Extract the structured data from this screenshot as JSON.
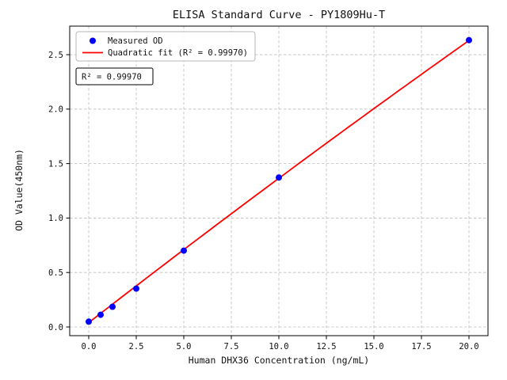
{
  "chart_data": {
    "type": "scatter",
    "title": "ELISA Standard Curve - PY1809Hu-T",
    "xlabel": "Human DHX36 Concentration (ng/mL)",
    "ylabel": "OD Value(450nm)",
    "xlim": [
      -1,
      21
    ],
    "ylim": [
      -0.08,
      2.762
    ],
    "grid": true,
    "xticks": {
      "values": [
        0,
        2.5,
        5,
        7.5,
        10,
        12.5,
        15,
        17.5,
        20
      ],
      "labels": [
        "0.0",
        "2.5",
        "5.0",
        "7.5",
        "10.0",
        "12.5",
        "15.0",
        "17.5",
        "20.0"
      ]
    },
    "yticks": {
      "values": [
        0,
        0.5,
        1,
        1.5,
        2,
        2.5
      ],
      "labels": [
        "0.0",
        "0.5",
        "1.0",
        "1.5",
        "2.0",
        "2.5"
      ]
    },
    "colors": {
      "marker": "#0000ff",
      "fit_line": "#ff0000",
      "grid": "#bdbdbd",
      "axes": "#000000"
    },
    "series": [
      {
        "name": "Measured OD",
        "type": "scatter",
        "color": "#0000ff",
        "x": [
          0,
          0.625,
          1.25,
          2.5,
          5,
          10,
          20
        ],
        "y": [
          0.049,
          0.112,
          0.185,
          0.352,
          0.701,
          1.372,
          2.633
        ]
      },
      {
        "name": "Quadratic fit",
        "type": "line",
        "color": "#ff0000",
        "fit": {
          "kind": "quadratic",
          "a": -0.0003,
          "b": 0.1355,
          "c": 0.04,
          "x_range": [
            0,
            20
          ]
        },
        "r_squared": "0.99970"
      }
    ],
    "legend": {
      "position": "upper left",
      "entries": [
        {
          "label": "Measured OD",
          "marker": "circle",
          "color": "#0000ff"
        },
        {
          "label": "Quadratic fit (R² = 0.99970)",
          "marker": "line",
          "color": "#ff0000"
        }
      ]
    },
    "annotation": {
      "text": "R² = 0.99970"
    }
  }
}
